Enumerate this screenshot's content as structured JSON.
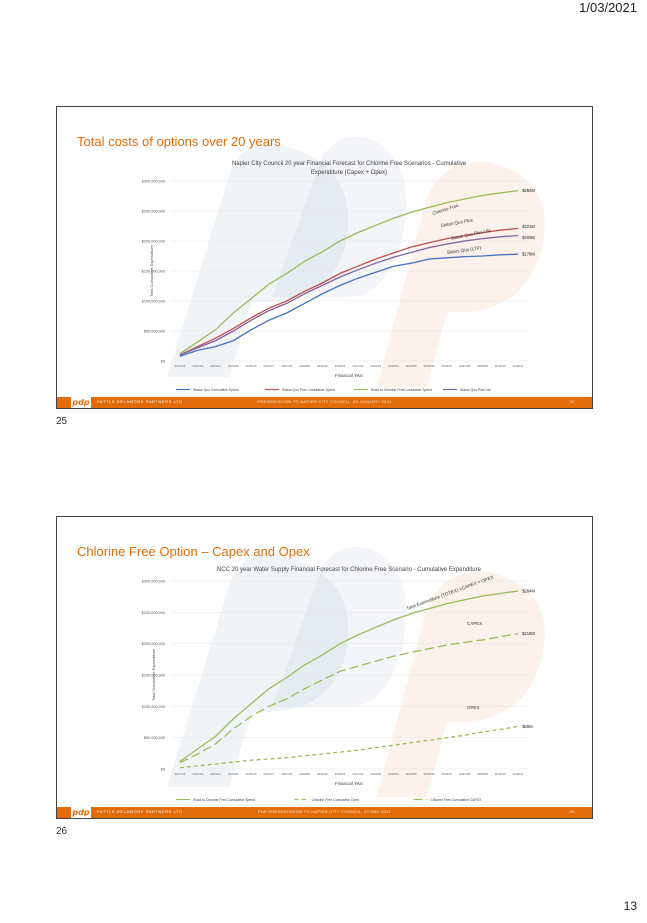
{
  "page": {
    "date": "1/03/2021",
    "number": "13"
  },
  "footer": {
    "logo": "pdp",
    "company": "PATTLE DELAMORE PARTNERS LTD",
    "slide_numbers": [
      "25",
      "26"
    ]
  },
  "slides": [
    {
      "label": "25",
      "title": "Total costs of options over 20 years",
      "presentation": "PRESENTATION TO NAPIER CITY COUNCIL, 28 JANUARY 2021",
      "chart_data": {
        "type": "line",
        "title": "Napier City Council 20 year Financial Forecast for Chlorine Free Scenarios - Cumulative Expenditure (Capex + Opex)",
        "title_lines": [
          "Napier City Council 20 year Financial Forecast for Chlorine Free Scenarios - Cumulative",
          "Expenditure (Capex + Opex)"
        ],
        "xlabel": "Financial Year",
        "ylabel": "Total Cumulative Expenditure",
        "ylim": [
          0,
          300000000
        ],
        "y_ticks": [
          "$0",
          "$50,000,000",
          "$100,000,000",
          "$150,000,000",
          "$200,000,000",
          "$250,000,000",
          "$300,000,000"
        ],
        "x": [
          "2021/22",
          "2022/23",
          "2023/24",
          "2024/25",
          "2025/26",
          "2026/27",
          "2027/28",
          "2028/29",
          "2029/30",
          "2030/31",
          "2031/32",
          "2032/33",
          "2033/34",
          "2034/35",
          "2035/36",
          "2036/37",
          "2037/38",
          "2038/39",
          "2039/40",
          "2040/41"
        ],
        "legend_position": "bottom",
        "series": [
          {
            "name": "Status Quo Cumulative Spend",
            "color": "#4472c4",
            "values": [
              8,
              18,
              24,
              34,
              52,
              68,
              80,
              96,
              112,
              126,
              138,
              148,
              158,
              163,
              170,
              172,
              174,
              175,
              177,
              178
            ],
            "end_label": "$178M",
            "curve_label": "Status Quo (LTP)"
          },
          {
            "name": "Status Quo Plus Cumulative Spend",
            "color": "#c0504d",
            "values": [
              10,
              24,
              38,
              54,
              72,
              88,
              100,
              116,
              130,
              146,
              158,
              170,
              180,
              190,
              197,
              204,
              209,
              214,
              218,
              221
            ],
            "end_label": "$221M",
            "curve_label": "Status Quo Plus"
          },
          {
            "name": "Road to Chlorine FreeCumulative Spend",
            "color": "#9bbb59",
            "values": [
              12,
              32,
              52,
              80,
              104,
              128,
              146,
              166,
              182,
              200,
              214,
              226,
              238,
              248,
              256,
              264,
              270,
              276,
              280,
              284
            ],
            "end_label": "$284M",
            "curve_label": "Chlorine Free"
          },
          {
            "name": "Status Quo Plus Lite",
            "color": "#8064a2",
            "values": [
              10,
              22,
              34,
              50,
              68,
              84,
              96,
              112,
              126,
              140,
              152,
              163,
              173,
              181,
              189,
              195,
              200,
              204,
              207,
              209
            ],
            "end_label": "$209M",
            "curve_label": "Status Quo Plus Lite"
          }
        ]
      }
    },
    {
      "label": "26",
      "title": "Chlorine Free Option – Capex and Opex",
      "presentation": "PDP PRESENTATION TO NAPIER CITY COUNCIL, 23 MAY 2021",
      "chart_data": {
        "type": "line",
        "title": "NCC 20 year Water Supply Financial Forecast for Chlorine Free Scenario - Cumulative Expenditure",
        "title_lines": [
          "NCC 20 year Water Supply Financial Forecast for Chlorine Free Scenario - Cumulative Expenditure"
        ],
        "xlabel": "Financial Year",
        "ylabel": "Total Cumulative Expenditure",
        "ylim": [
          0,
          300000000
        ],
        "y_ticks": [
          "$0",
          "$50,000,000",
          "$100,000,000",
          "$150,000,000",
          "$200,000,000",
          "$250,000,000",
          "$300,000,000"
        ],
        "x": [
          "2021/22",
          "2022/23",
          "2023/24",
          "2024/25",
          "2025/26",
          "2026/27",
          "2027/28",
          "2028/29",
          "2029/30",
          "2030/31",
          "2031/32",
          "2032/33",
          "2033/34",
          "2034/35",
          "2035/36",
          "2036/37",
          "2037/38",
          "2038/39",
          "2039/40",
          "2040/41"
        ],
        "legend_position": "bottom",
        "series": [
          {
            "name": "Road to Chlorine Free Cumulative Spend",
            "color": "#9bbb59",
            "dash": "",
            "values": [
              12,
              32,
              52,
              80,
              104,
              128,
              146,
              166,
              182,
              200,
              214,
              226,
              238,
              248,
              256,
              264,
              270,
              276,
              280,
              284
            ],
            "end_label": "$284M",
            "curve_label": "Total Expenditure (TOTEX) =CAPEX + OPEX"
          },
          {
            "name": "Chlorine Free Cumulative Opex",
            "color": "#9bbb59",
            "dash": "4,3",
            "values": [
              2,
              5,
              8,
              11,
              14,
              16,
              18,
              21,
              24,
              27,
              30,
              34,
              38,
              42,
              46,
              50,
              54,
              59,
              63,
              68
            ],
            "end_label": "$68M",
            "curve_label": "OPEX"
          },
          {
            "name": "Chlorine Free Cumulative CAPEX",
            "color": "#9bbb59",
            "dash": "9,4",
            "values": [
              10,
              24,
              40,
              64,
              84,
              100,
              112,
              128,
              142,
              156,
              164,
              172,
              180,
              186,
              192,
              198,
              202,
              206,
              211,
              216
            ],
            "end_label": "$216M",
            "curve_label": "CAPEX"
          }
        ]
      }
    }
  ]
}
